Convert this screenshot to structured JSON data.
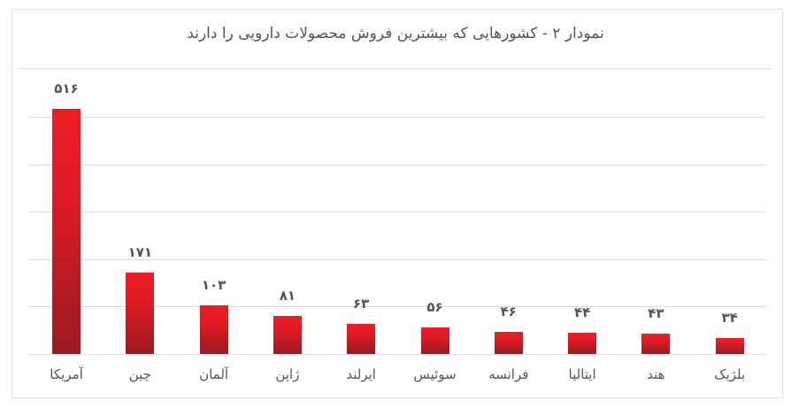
{
  "title": "نمودار ۲ - کشورهایی که بیشترین فروش محصولات دارویی را دارند",
  "colors": {
    "bar_top": "#ee1c25",
    "bar_bottom": "#9d1a20",
    "text": "#555555",
    "grid": "#dcdcdc"
  },
  "bars": [
    {
      "label": "آمریکا",
      "value_label": "۵۱۶"
    },
    {
      "label": "چین",
      "value_label": "۱۷۱"
    },
    {
      "label": "آلمان",
      "value_label": "۱۰۳"
    },
    {
      "label": "ژاپن",
      "value_label": "۸۱"
    },
    {
      "label": "ایرلند",
      "value_label": "۶۳"
    },
    {
      "label": "سوئیس",
      "value_label": "۵۶"
    },
    {
      "label": "فرانسه",
      "value_label": "۴۶"
    },
    {
      "label": "ایتالیا",
      "value_label": "۴۴"
    },
    {
      "label": "هند",
      "value_label": "۴۳"
    },
    {
      "label": "بلژیک",
      "value_label": "۳۴"
    }
  ],
  "chart_data": {
    "type": "bar",
    "title": "نمودار ۲ - کشورهایی که بیشترین فروش محصولات دارویی را دارند",
    "categories": [
      "آمریکا",
      "چین",
      "آلمان",
      "ژاپن",
      "ایرلند",
      "سوئیس",
      "فرانسه",
      "ایتالیا",
      "هند",
      "بلژیک"
    ],
    "values": [
      516,
      171,
      103,
      81,
      63,
      56,
      46,
      44,
      43,
      34
    ],
    "xlabel": "",
    "ylabel": "",
    "ylim": [
      0,
      500
    ],
    "grid": true,
    "gridline_step": 100,
    "axis_tick_labels_visible": false,
    "data_labels": true,
    "legend": "none"
  }
}
